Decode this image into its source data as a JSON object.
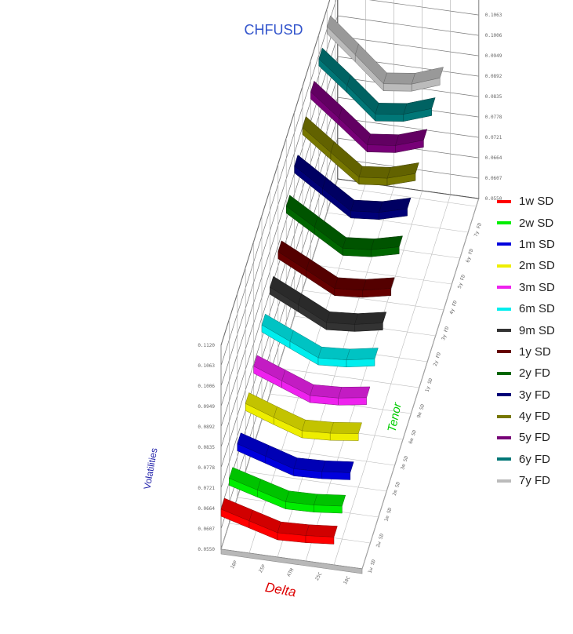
{
  "chart_data": {
    "type": "line",
    "title": "CHFUSD",
    "xlabel": "Delta",
    "ylabel": "Volatilities",
    "zlabel": "Tenor",
    "colors": {
      "title": "#3355cc",
      "xlabel": "#dd0000",
      "ylabel": "#2222aa",
      "zlabel": "#00cc00"
    },
    "legend_position": "right",
    "grid": true,
    "categories": [
      "10P",
      "25P",
      "ATM",
      "25C",
      "10C"
    ],
    "series": [
      {
        "name": "1w SD",
        "color": "#ff0000",
        "values": [
          0.0662,
          0.064,
          0.0618,
          0.0621,
          0.0628
        ]
      },
      {
        "name": "2w SD",
        "color": "#00ee00",
        "values": [
          0.0676,
          0.0654,
          0.0632,
          0.0634,
          0.0642
        ]
      },
      {
        "name": "1m SD",
        "color": "#0000dd",
        "values": [
          0.07,
          0.0676,
          0.0652,
          0.0655,
          0.0663
        ]
      },
      {
        "name": "2m SD",
        "color": "#eeee00",
        "values": [
          0.074,
          0.0712,
          0.0686,
          0.069,
          0.07
        ]
      },
      {
        "name": "3m SD",
        "color": "#ee22ee",
        "values": [
          0.0772,
          0.0742,
          0.0712,
          0.0716,
          0.0728
        ]
      },
      {
        "name": "6m SD",
        "color": "#00eeee",
        "values": [
          0.0815,
          0.078,
          0.0745,
          0.075,
          0.0764
        ]
      },
      {
        "name": "9m SD",
        "color": "#333333",
        "values": [
          0.0848,
          0.081,
          0.0771,
          0.0777,
          0.0792
        ]
      },
      {
        "name": "1y SD",
        "color": "#660000",
        "values": [
          0.0875,
          0.0835,
          0.0794,
          0.08,
          0.0816
        ]
      },
      {
        "name": "2y FD",
        "color": "#006600",
        "values": [
          0.093,
          0.0882,
          0.0834,
          0.0841,
          0.086
        ]
      },
      {
        "name": "3y FD",
        "color": "#000077",
        "values": [
          0.097,
          0.0918,
          0.0866,
          0.0873,
          0.0894
        ]
      },
      {
        "name": "4y FD",
        "color": "#777700",
        "values": [
          0.1005,
          0.0946,
          0.0888,
          0.0896,
          0.092
        ]
      },
      {
        "name": "5y FD",
        "color": "#770077",
        "values": [
          0.1032,
          0.097,
          0.0906,
          0.0915,
          0.0941
        ]
      },
      {
        "name": "6y FD",
        "color": "#007777",
        "values": [
          0.1052,
          0.0988,
          0.092,
          0.093,
          0.0957
        ]
      },
      {
        "name": "7y FD",
        "color": "#bbbbbb",
        "values": [
          0.107,
          0.1002,
          0.0932,
          0.0942,
          0.097
        ]
      }
    ]
  }
}
